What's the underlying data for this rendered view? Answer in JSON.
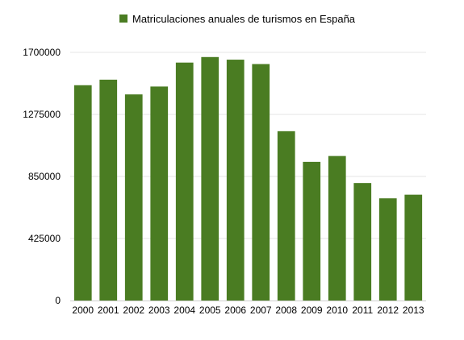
{
  "chart_data": {
    "type": "bar",
    "legend": {
      "label": "Matriculaciones anuales de turismos en España",
      "position": "top-center",
      "color": "#4a7c22"
    },
    "categories": [
      "2000",
      "2001",
      "2002",
      "2003",
      "2004",
      "2005",
      "2006",
      "2007",
      "2008",
      "2009",
      "2010",
      "2011",
      "2012",
      "2013"
    ],
    "series": [
      {
        "name": "Matriculaciones anuales de turismos en España",
        "color": "#4a7c22",
        "values": [
          1475000,
          1513000,
          1412000,
          1466000,
          1630000,
          1668000,
          1650000,
          1620000,
          1160000,
          950000,
          990000,
          805000,
          700000,
          725000
        ]
      }
    ],
    "yticks": [
      "0",
      "425000",
      "850000",
      "1275000",
      "1700000"
    ],
    "ylim": [
      0,
      1700000
    ],
    "grid": true,
    "title": "",
    "xlabel": "",
    "ylabel": ""
  }
}
